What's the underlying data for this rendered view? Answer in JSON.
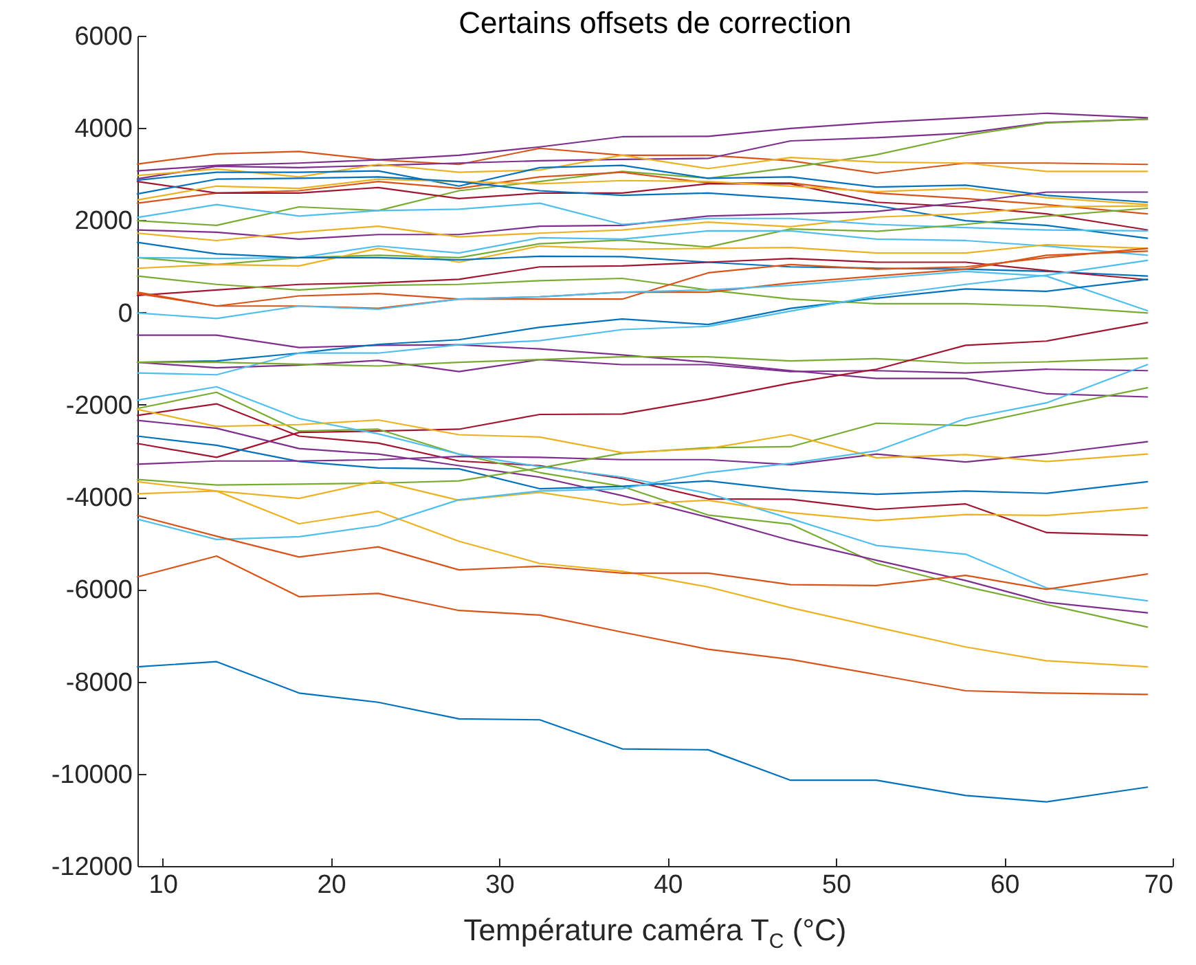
{
  "chart_data": {
    "type": "line",
    "title": "Certains offsets de correction",
    "xlabel": "Température caméra  T$_{C}$ (°C)",
    "x": [
      8.5,
      13.2,
      18.1,
      22.8,
      27.6,
      32.4,
      37.3,
      42.4,
      47.3,
      52.4,
      57.7,
      62.5,
      68.5
    ],
    "xlim": [
      8.5,
      70
    ],
    "xticks": [
      10,
      20,
      30,
      40,
      50,
      60,
      70
    ],
    "ylim": [
      -12000,
      6000
    ],
    "yticks": [
      -12000,
      -10000,
      -8000,
      -6000,
      -4000,
      -2000,
      0,
      2000,
      4000,
      6000
    ],
    "series": [
      {
        "color": "#d95319",
        "values": [
          3220,
          3440,
          3490,
          3310,
          3210,
          3560,
          3410,
          3410,
          3290,
          3020,
          3240,
          3240,
          3210
        ]
      },
      {
        "color": "#7e2f8e",
        "values": [
          3070,
          3190,
          3240,
          3310,
          3410,
          3590,
          3810,
          3820,
          3990,
          4120,
          4220,
          4320,
          4220
        ]
      },
      {
        "color": "#7e2f8e",
        "values": [
          2900,
          3170,
          3140,
          3190,
          3240,
          3290,
          3320,
          3340,
          3720,
          3790,
          3890,
          4120,
          4190
        ]
      },
      {
        "color": "#77ac30",
        "values": [
          1990,
          1890,
          2290,
          2210,
          2640,
          2840,
          3060,
          2910,
          3140,
          3420,
          3840,
          4110,
          4190
        ]
      },
      {
        "color": "#edb120",
        "values": [
          2970,
          3110,
          2940,
          3210,
          3040,
          3090,
          3410,
          3120,
          3360,
          3260,
          3240,
          3060,
          3060
        ]
      },
      {
        "color": "#0072bd",
        "values": [
          2870,
          3040,
          3040,
          3070,
          2740,
          3140,
          3190,
          2910,
          2940,
          2720,
          2760,
          2540,
          2390
        ]
      },
      {
        "color": "#d95319",
        "values": [
          2370,
          2590,
          2640,
          2840,
          2690,
          2940,
          3040,
          2810,
          2810,
          2590,
          2470,
          2340,
          2140
        ]
      },
      {
        "color": "#a2142f",
        "values": [
          2840,
          2590,
          2590,
          2710,
          2470,
          2590,
          2590,
          2790,
          2790,
          2390,
          2290,
          2140,
          1790
        ]
      },
      {
        "color": "#edb120",
        "values": [
          2440,
          2740,
          2690,
          2890,
          2840,
          2790,
          2860,
          2840,
          2740,
          2620,
          2690,
          2490,
          2340
        ]
      },
      {
        "color": "#0072bd",
        "values": [
          2570,
          2890,
          2910,
          2940,
          2840,
          2640,
          2540,
          2590,
          2470,
          2320,
          1990,
          1890,
          1610
        ]
      },
      {
        "color": "#7e2f8e",
        "values": [
          1790,
          1740,
          1590,
          1690,
          1690,
          1870,
          1890,
          2090,
          2140,
          2190,
          2390,
          2610,
          2610
        ]
      },
      {
        "color": "#edb120",
        "values": [
          1720,
          1560,
          1740,
          1870,
          1640,
          1720,
          1790,
          1960,
          1860,
          2070,
          2140,
          2290,
          2310
        ]
      },
      {
        "color": "#4dbeee",
        "values": [
          2060,
          2340,
          2090,
          2210,
          2240,
          2370,
          1910,
          2040,
          2040,
          1910,
          1840,
          1790,
          1770
        ]
      },
      {
        "color": "#77ac30",
        "values": [
          1190,
          1040,
          1190,
          1240,
          1190,
          1490,
          1570,
          1420,
          1810,
          1760,
          1910,
          2090,
          2260
        ]
      },
      {
        "color": "#4dbeee",
        "values": [
          1190,
          1170,
          1190,
          1440,
          1290,
          1620,
          1590,
          1770,
          1770,
          1590,
          1560,
          1440,
          1240
        ]
      },
      {
        "color": "#edb120",
        "values": [
          960,
          1040,
          1010,
          1390,
          1090,
          1440,
          1370,
          1390,
          1410,
          1290,
          1290,
          1470,
          1390
        ]
      },
      {
        "color": "#0072bd",
        "values": [
          1520,
          1270,
          1190,
          1190,
          1140,
          1220,
          1210,
          1090,
          990,
          960,
          940,
          890,
          790
        ]
      },
      {
        "color": "#a2142f",
        "values": [
          370,
          490,
          610,
          640,
          720,
          990,
          1010,
          1090,
          1170,
          1090,
          1090,
          910,
          710
        ]
      },
      {
        "color": "#77ac30",
        "values": [
          790,
          610,
          490,
          590,
          610,
          690,
          740,
          490,
          290,
          190,
          190,
          140,
          -10
        ]
      },
      {
        "color": "#d95319",
        "values": [
          440,
          140,
          360,
          410,
          290,
          290,
          290,
          860,
          1040,
          940,
          990,
          1190,
          1390
        ]
      },
      {
        "color": "#d95319",
        "values": [
          410,
          140,
          140,
          90,
          290,
          340,
          440,
          440,
          640,
          790,
          940,
          1240,
          1330
        ]
      },
      {
        "color": "#4dbeee",
        "values": [
          -10,
          -130,
          140,
          70,
          290,
          340,
          440,
          490,
          590,
          740,
          890,
          790,
          40
        ]
      },
      {
        "color": "#7e2f8e",
        "values": [
          -490,
          -490,
          -760,
          -710,
          -700,
          -790,
          -920,
          -1080,
          -1260,
          -1430,
          -1430,
          -1760,
          -1830
        ]
      },
      {
        "color": "#7e2f8e",
        "values": [
          -1080,
          -1200,
          -1140,
          -1040,
          -1280,
          -1020,
          -1130,
          -1130,
          -1280,
          -1260,
          -1310,
          -1230,
          -1260
        ]
      },
      {
        "color": "#0072bd",
        "values": [
          -1080,
          -1050,
          -880,
          -690,
          -590,
          -320,
          -140,
          -260,
          90,
          310,
          510,
          460,
          720
        ]
      },
      {
        "color": "#4dbeee",
        "values": [
          -1310,
          -1350,
          -880,
          -880,
          -700,
          -610,
          -370,
          -300,
          30,
          360,
          610,
          810,
          1130
        ]
      },
      {
        "color": "#77ac30",
        "values": [
          -1080,
          -1080,
          -1120,
          -1160,
          -1080,
          -1020,
          -960,
          -960,
          -1050,
          -1000,
          -1100,
          -1070,
          -990
        ]
      },
      {
        "color": "#a2142f",
        "values": [
          -2840,
          -3140,
          -2600,
          -2570,
          -2530,
          -2210,
          -2200,
          -1880,
          -1530,
          -1230,
          -710,
          -620,
          -220
        ]
      },
      {
        "color": "#a2142f",
        "values": [
          -2230,
          -1980,
          -2680,
          -2830,
          -3220,
          -3320,
          -3600,
          -4040,
          -4050,
          -4270,
          -4150,
          -4770,
          -4830
        ]
      },
      {
        "color": "#77ac30",
        "values": [
          -2080,
          -1730,
          -2570,
          -2530,
          -3070,
          -3470,
          -3770,
          -4390,
          -4590,
          -5440,
          -5940,
          -6330,
          -6820
        ]
      },
      {
        "color": "#4dbeee",
        "values": [
          -1900,
          -1610,
          -2300,
          -2630,
          -3070,
          -3340,
          -3570,
          -3920,
          -4470,
          -5050,
          -5240,
          -5970,
          -6250
        ]
      },
      {
        "color": "#7e2f8e",
        "values": [
          -2340,
          -2510,
          -2950,
          -3070,
          -3320,
          -3570,
          -3970,
          -4440,
          -4940,
          -5370,
          -5810,
          -6280,
          -6510
        ]
      },
      {
        "color": "#0072bd",
        "values": [
          -2680,
          -2880,
          -3230,
          -3370,
          -3390,
          -3820,
          -3770,
          -3650,
          -3850,
          -3940,
          -3870,
          -3920,
          -3670
        ]
      },
      {
        "color": "#7e2f8e",
        "values": [
          -3290,
          -3220,
          -3220,
          -3190,
          -3120,
          -3140,
          -3190,
          -3190,
          -3300,
          -3070,
          -3240,
          -3070,
          -2800
        ]
      },
      {
        "color": "#77ac30",
        "values": [
          -3620,
          -3740,
          -3720,
          -3700,
          -3650,
          -3370,
          -3050,
          -2930,
          -2910,
          -2400,
          -2450,
          -2080,
          -1630
        ]
      },
      {
        "color": "#edb120",
        "values": [
          -2100,
          -2470,
          -2430,
          -2330,
          -2650,
          -2700,
          -3040,
          -2950,
          -2650,
          -3150,
          -3080,
          -3230,
          -3070
        ]
      },
      {
        "color": "#edb120",
        "values": [
          -3930,
          -3870,
          -4030,
          -3650,
          -4070,
          -3900,
          -4170,
          -4070,
          -4340,
          -4510,
          -4380,
          -4400,
          -4230
        ]
      },
      {
        "color": "#edb120",
        "values": [
          -3670,
          -3870,
          -4580,
          -4310,
          -4960,
          -5440,
          -5610,
          -5950,
          -6400,
          -6820,
          -7250,
          -7550,
          -7680
        ]
      },
      {
        "color": "#4dbeee",
        "values": [
          -4480,
          -4920,
          -4860,
          -4620,
          -4060,
          -3870,
          -3820,
          -3470,
          -3270,
          -3000,
          -2300,
          -1960,
          -1130
        ]
      },
      {
        "color": "#d95319",
        "values": [
          -4400,
          -4850,
          -5300,
          -5080,
          -5580,
          -5500,
          -5650,
          -5650,
          -5900,
          -5920,
          -5700,
          -6000,
          -5670
        ]
      },
      {
        "color": "#d95319",
        "values": [
          -5730,
          -5280,
          -6160,
          -6090,
          -6460,
          -6560,
          -6930,
          -7300,
          -7520,
          -7850,
          -8200,
          -8250,
          -8280
        ]
      },
      {
        "color": "#0072bd",
        "values": [
          -7680,
          -7570,
          -8250,
          -8450,
          -8810,
          -8830,
          -9460,
          -9480,
          -10140,
          -10140,
          -10470,
          -10610,
          -10290
        ]
      }
    ]
  }
}
